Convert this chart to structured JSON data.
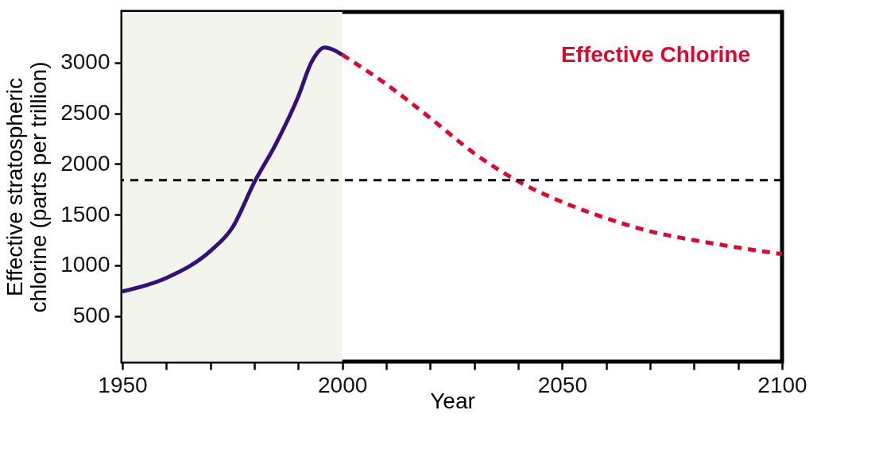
{
  "chart_data": {
    "type": "line",
    "xlabel": "Year",
    "ylabel": "Effective stratospheric\nchlorine (parts per trillion)",
    "xlim": [
      1950,
      2100
    ],
    "xticks": [
      1950,
      {
        "value": 1960,
        "label": null
      },
      {
        "value": 1970,
        "label": null
      },
      {
        "value": 1980,
        "label": null
      },
      {
        "value": 1990,
        "label": null
      },
      2000,
      {
        "value": 2010,
        "label": null
      },
      {
        "value": 2020,
        "label": null
      },
      {
        "value": 2030,
        "label": null
      },
      {
        "value": 2040,
        "label": null
      },
      2050,
      {
        "value": 2060,
        "label": null
      },
      {
        "value": 2070,
        "label": null
      },
      {
        "value": 2080,
        "label": null
      },
      {
        "value": 2090,
        "label": null
      },
      2100
    ],
    "ylim": [
      50,
      3500
    ],
    "yticks": [
      500,
      1000,
      1500,
      2000,
      2500,
      3000
    ],
    "grid": false,
    "series": [
      {
        "color": "#35107a",
        "line_style": "solid",
        "x": [
          1950,
          1960,
          1970,
          1975,
          1980,
          1985,
          1990,
          1993,
          1996,
          1998,
          2000
        ],
        "values": [
          742,
          875,
          1141,
          1371,
          1819,
          2206,
          2666,
          3005,
          3150,
          3126,
          3078
        ]
      },
      {
        "name": "Effective Chlorine",
        "color": "#e0072e",
        "line_style": "dashed",
        "x": [
          2000,
          2010,
          2020,
          2030,
          2040,
          2050,
          2060,
          2070,
          2080,
          2090,
          2100
        ],
        "values": [
          3078,
          2787,
          2453,
          2105,
          1829,
          1625,
          1465,
          1335,
          1248,
          1175,
          1110
        ]
      }
    ],
    "ref_lines": [
      {
        "axis": "y",
        "value": 1840,
        "color": "#000000",
        "line_style": "dashed"
      }
    ],
    "bands": [
      {
        "axis": "x",
        "from": 1950,
        "to": 2000,
        "color": "#f3f4ec"
      }
    ]
  }
}
